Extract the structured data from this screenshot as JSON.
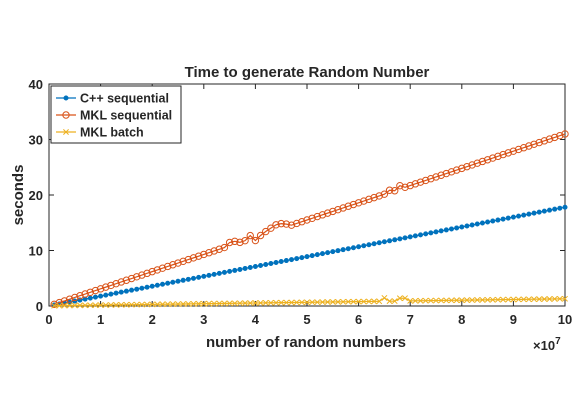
{
  "chart_data": {
    "type": "line",
    "title": "Time to generate Random Number",
    "xlabel": "number of random numbers",
    "ylabel": "seconds",
    "x_exponent_label": "×10",
    "x_exponent_power": "7",
    "xlim": [
      0,
      100000000
    ],
    "ylim": [
      0,
      40
    ],
    "x_ticks": [
      0,
      10000000,
      20000000,
      30000000,
      40000000,
      50000000,
      60000000,
      70000000,
      80000000,
      90000000,
      100000000
    ],
    "x_tick_labels": [
      "0",
      "1",
      "2",
      "3",
      "4",
      "5",
      "6",
      "7",
      "8",
      "9",
      "10"
    ],
    "y_ticks": [
      0,
      10,
      20,
      30,
      40
    ],
    "y_tick_labels": [
      "0",
      "10",
      "20",
      "30",
      "40"
    ],
    "grid": false,
    "legend_position": "top-left",
    "series": [
      {
        "name": "C++ sequential",
        "color": "#0072BD",
        "marker": "dot",
        "x_start": 1000000,
        "x_step": 1000000,
        "count": 100,
        "y_start": 0.18,
        "y_end": 17.8,
        "bumps": []
      },
      {
        "name": "MKL sequential",
        "color": "#D95319",
        "marker": "circle",
        "x_start": 1000000,
        "x_step": 1000000,
        "count": 100,
        "y_start": 0.3,
        "y_end": 31.0,
        "bumps": [
          {
            "x": 35000000,
            "dy": 0.6
          },
          {
            "x": 36000000,
            "dy": 0.5
          },
          {
            "x": 39000000,
            "dy": 0.6
          },
          {
            "x": 40000000,
            "dy": -0.6
          },
          {
            "x": 42000000,
            "dy": 0.4
          },
          {
            "x": 43000000,
            "dy": 0.7
          },
          {
            "x": 44000000,
            "dy": 1.0
          },
          {
            "x": 45000000,
            "dy": 0.9
          },
          {
            "x": 46000000,
            "dy": 0.5
          },
          {
            "x": 66000000,
            "dy": 0.4
          },
          {
            "x": 68000000,
            "dy": 0.6
          }
        ]
      },
      {
        "name": "MKL batch",
        "color": "#EDB120",
        "marker": "x",
        "x_start": 1000000,
        "x_step": 1000000,
        "count": 100,
        "y_start": 0.05,
        "y_end": 1.3,
        "bumps": [
          {
            "x": 65000000,
            "dy": 0.6
          },
          {
            "x": 68000000,
            "dy": 0.5
          },
          {
            "x": 69000000,
            "dy": 0.5
          }
        ]
      }
    ]
  }
}
